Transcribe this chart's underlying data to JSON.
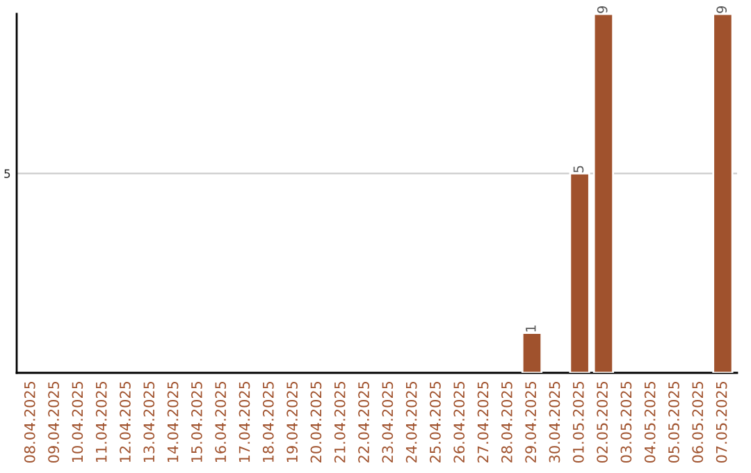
{
  "chart_data": {
    "type": "bar",
    "categories": [
      "08.04.2025",
      "09.04.2025",
      "10.04.2025",
      "11.04.2025",
      "12.04.2025",
      "13.04.2025",
      "14.04.2025",
      "15.04.2025",
      "16.04.2025",
      "17.04.2025",
      "18.04.2025",
      "19.04.2025",
      "20.04.2025",
      "21.04.2025",
      "22.04.2025",
      "23.04.2025",
      "24.04.2025",
      "25.04.2025",
      "26.04.2025",
      "27.04.2025",
      "28.04.2025",
      "29.04.2025",
      "30.04.2025",
      "01.05.2025",
      "02.05.2025",
      "03.05.2025",
      "04.05.2025",
      "05.05.2025",
      "06.05.2025",
      "07.05.2025"
    ],
    "values": [
      null,
      null,
      null,
      null,
      null,
      null,
      null,
      null,
      null,
      null,
      null,
      null,
      null,
      null,
      null,
      null,
      null,
      null,
      null,
      null,
      null,
      1,
      null,
      5,
      9,
      null,
      null,
      null,
      null,
      9
    ],
    "color": "#a0522d",
    "ylim": [
      0,
      9
    ],
    "yticks": [
      5
    ],
    "grid": "y",
    "data_labels": true
  }
}
